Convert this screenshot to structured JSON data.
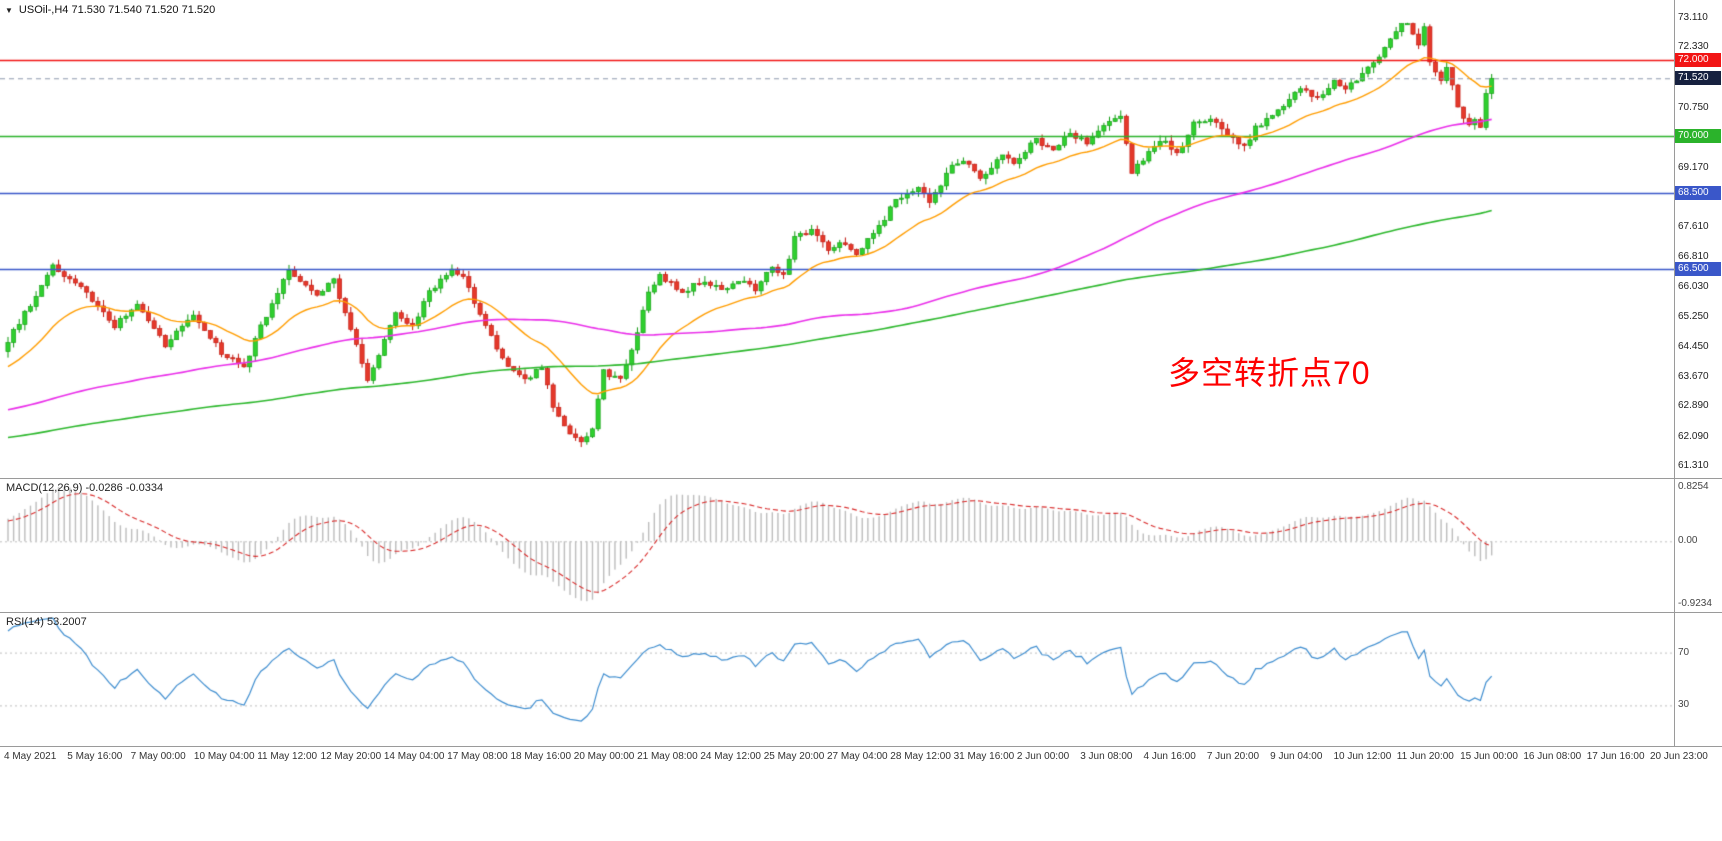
{
  "window": {
    "expand_icon": "▼",
    "symbol_info": "USOil-,H4 71.530 71.540 71.520 71.520"
  },
  "annotation": {
    "text": "多空转折点70",
    "color": "#fe0000"
  },
  "price_axis": {
    "ticks": [
      {
        "label": "73.110",
        "price": 73.11
      },
      {
        "label": "72.330",
        "price": 72.33
      },
      {
        "label": "70.750",
        "price": 70.75
      },
      {
        "label": "69.170",
        "price": 69.17
      },
      {
        "label": "68.390",
        "price": 68.39
      },
      {
        "label": "67.610",
        "price": 67.61
      },
      {
        "label": "66.810",
        "price": 66.81
      },
      {
        "label": "66.030",
        "price": 66.03
      },
      {
        "label": "65.250",
        "price": 65.25
      },
      {
        "label": "64.450",
        "price": 64.45
      },
      {
        "label": "63.670",
        "price": 63.67
      },
      {
        "label": "62.890",
        "price": 62.89
      },
      {
        "label": "62.090",
        "price": 62.09
      },
      {
        "label": "61.310",
        "price": 61.31
      }
    ],
    "badges": [
      {
        "label": "72.000",
        "price": 72.0,
        "bg": "#f21515"
      },
      {
        "label": "71.520",
        "price": 71.52,
        "bg": "#16213f"
      },
      {
        "label": "70.000",
        "price": 70.0,
        "bg": "#2bb32b"
      },
      {
        "label": "68.500",
        "price": 68.5,
        "bg": "#3a57c9"
      },
      {
        "label": "66.500",
        "price": 66.5,
        "bg": "#3a57c9"
      }
    ]
  },
  "macd_panel": {
    "label": "MACD(12,26,9) -0.0286 -0.0334",
    "axis_labels": [
      "0.8254",
      "0.00",
      "-0.9234"
    ]
  },
  "rsi_panel": {
    "label": "RSI(14) 53.2007",
    "level_labels": [
      "70",
      "30"
    ]
  },
  "time_axis": {
    "labels": [
      "4 May 2021",
      "5 May 16:00",
      "7 May 00:00",
      "10 May 04:00",
      "11 May 12:00",
      "12 May 20:00",
      "14 May 04:00",
      "17 May 08:00",
      "18 May 16:00",
      "20 May 00:00",
      "21 May 08:00",
      "24 May 12:00",
      "25 May 20:00",
      "27 May 04:00",
      "28 May 12:00",
      "31 May 16:00",
      "2 Jun 00:00",
      "3 Jun 08:00",
      "4 Jun 16:00",
      "7 Jun 20:00",
      "9 Jun 04:00",
      "10 Jun 12:00",
      "11 Jun 20:00",
      "15 Jun 00:00",
      "16 Jun 08:00",
      "17 Jun 16:00",
      "20 Jun 23:00"
    ]
  },
  "chart_data": {
    "type": "candlestick",
    "symbol": "USOil-",
    "timeframe": "H4",
    "title": "USOil-,H4 71.530 71.540 71.520 71.520",
    "bars_visible": 265,
    "y_axis": {
      "min": 61.0,
      "max": 73.58
    },
    "current_price": 71.52,
    "last_ohlc": {
      "open": 71.53,
      "high": 71.54,
      "low": 71.52,
      "close": 71.52
    },
    "close_anchors": [
      [
        0,
        64.6
      ],
      [
        8,
        66.55
      ],
      [
        13,
        66.0
      ],
      [
        19,
        65.0
      ],
      [
        23,
        65.6
      ],
      [
        28,
        64.5
      ],
      [
        33,
        65.3
      ],
      [
        38,
        64.3
      ],
      [
        42,
        63.9
      ],
      [
        45,
        65.0
      ],
      [
        50,
        66.45
      ],
      [
        55,
        65.8
      ],
      [
        58,
        66.2
      ],
      [
        61,
        64.9
      ],
      [
        64,
        63.6
      ],
      [
        69,
        65.3
      ],
      [
        72,
        65.0
      ],
      [
        75,
        65.9
      ],
      [
        79,
        66.55
      ],
      [
        81,
        66.3
      ],
      [
        85,
        65.0
      ],
      [
        88,
        64.1
      ],
      [
        92,
        63.6
      ],
      [
        95,
        63.9
      ],
      [
        97,
        62.9
      ],
      [
        100,
        62.2
      ],
      [
        102,
        61.9
      ],
      [
        104,
        62.3
      ],
      [
        106,
        63.8
      ],
      [
        109,
        63.6
      ],
      [
        111,
        64.3
      ],
      [
        114,
        65.9
      ],
      [
        116,
        66.3
      ],
      [
        120,
        65.9
      ],
      [
        124,
        66.2
      ],
      [
        127,
        66.0
      ],
      [
        131,
        66.2
      ],
      [
        133,
        65.9
      ],
      [
        136,
        66.6
      ],
      [
        138,
        66.3
      ],
      [
        140,
        67.3
      ],
      [
        143,
        67.5
      ],
      [
        146,
        67.0
      ],
      [
        148,
        67.2
      ],
      [
        151,
        66.9
      ],
      [
        155,
        67.6
      ],
      [
        158,
        68.3
      ],
      [
        162,
        68.6
      ],
      [
        164,
        68.3
      ],
      [
        168,
        69.2
      ],
      [
        170,
        69.4
      ],
      [
        173,
        68.9
      ],
      [
        177,
        69.5
      ],
      [
        179,
        69.3
      ],
      [
        183,
        69.9
      ],
      [
        186,
        69.6
      ],
      [
        189,
        70.1
      ],
      [
        192,
        69.8
      ],
      [
        194,
        70.2
      ],
      [
        198,
        70.55
      ],
      [
        200,
        69.0
      ],
      [
        201,
        69.2
      ],
      [
        203,
        69.6
      ],
      [
        206,
        69.9
      ],
      [
        208,
        69.5
      ],
      [
        211,
        70.3
      ],
      [
        214,
        70.5
      ],
      [
        217,
        70.0
      ],
      [
        220,
        69.7
      ],
      [
        222,
        70.2
      ],
      [
        225,
        70.6
      ],
      [
        228,
        70.9
      ],
      [
        230,
        71.3
      ],
      [
        233,
        71.0
      ],
      [
        236,
        71.4
      ],
      [
        238,
        71.2
      ],
      [
        241,
        71.6
      ],
      [
        244,
        72.1
      ],
      [
        246,
        72.5
      ],
      [
        248,
        73.0
      ],
      [
        249,
        73.0
      ],
      [
        251,
        72.4
      ],
      [
        252,
        72.9
      ],
      [
        253,
        71.9
      ],
      [
        255,
        71.4
      ],
      [
        256,
        71.8
      ],
      [
        258,
        70.8
      ],
      [
        260,
        70.25
      ],
      [
        261,
        70.4
      ],
      [
        262,
        70.2
      ],
      [
        263,
        71.1
      ],
      [
        264,
        71.52
      ]
    ],
    "levels": [
      {
        "price": 72.0,
        "color": "#f21515"
      },
      {
        "price": 70.0,
        "color": "#2bb32b"
      },
      {
        "price": 68.5,
        "color": "#3a57c9"
      },
      {
        "price": 66.5,
        "color": "#3a57c9"
      }
    ],
    "moving_averages": [
      {
        "type": "ema",
        "period": 20,
        "color": "#ff9d00"
      },
      {
        "type": "sma",
        "period": 100,
        "color": "#ea30ea"
      },
      {
        "type": "sma",
        "period": 200,
        "color": "#2db82d"
      }
    ],
    "candle_colors": {
      "up": "#2fcf2f",
      "down": "#e4392b",
      "up_wick": "#0f9b0f",
      "down_wick": "#c0140c"
    },
    "indicators": [
      {
        "name": "MACD",
        "params": [
          12,
          26,
          9
        ],
        "values": [
          -0.0286,
          -0.0334
        ],
        "axis_range": [
          0.8254,
          -0.9234
        ],
        "histogram_color": "#bdbdbd",
        "signal_color": "#d92b2b"
      },
      {
        "name": "RSI",
        "params": [
          14
        ],
        "value": 53.2007,
        "levels": [
          70,
          30
        ],
        "line_color": "#3f8ed0"
      }
    ]
  }
}
